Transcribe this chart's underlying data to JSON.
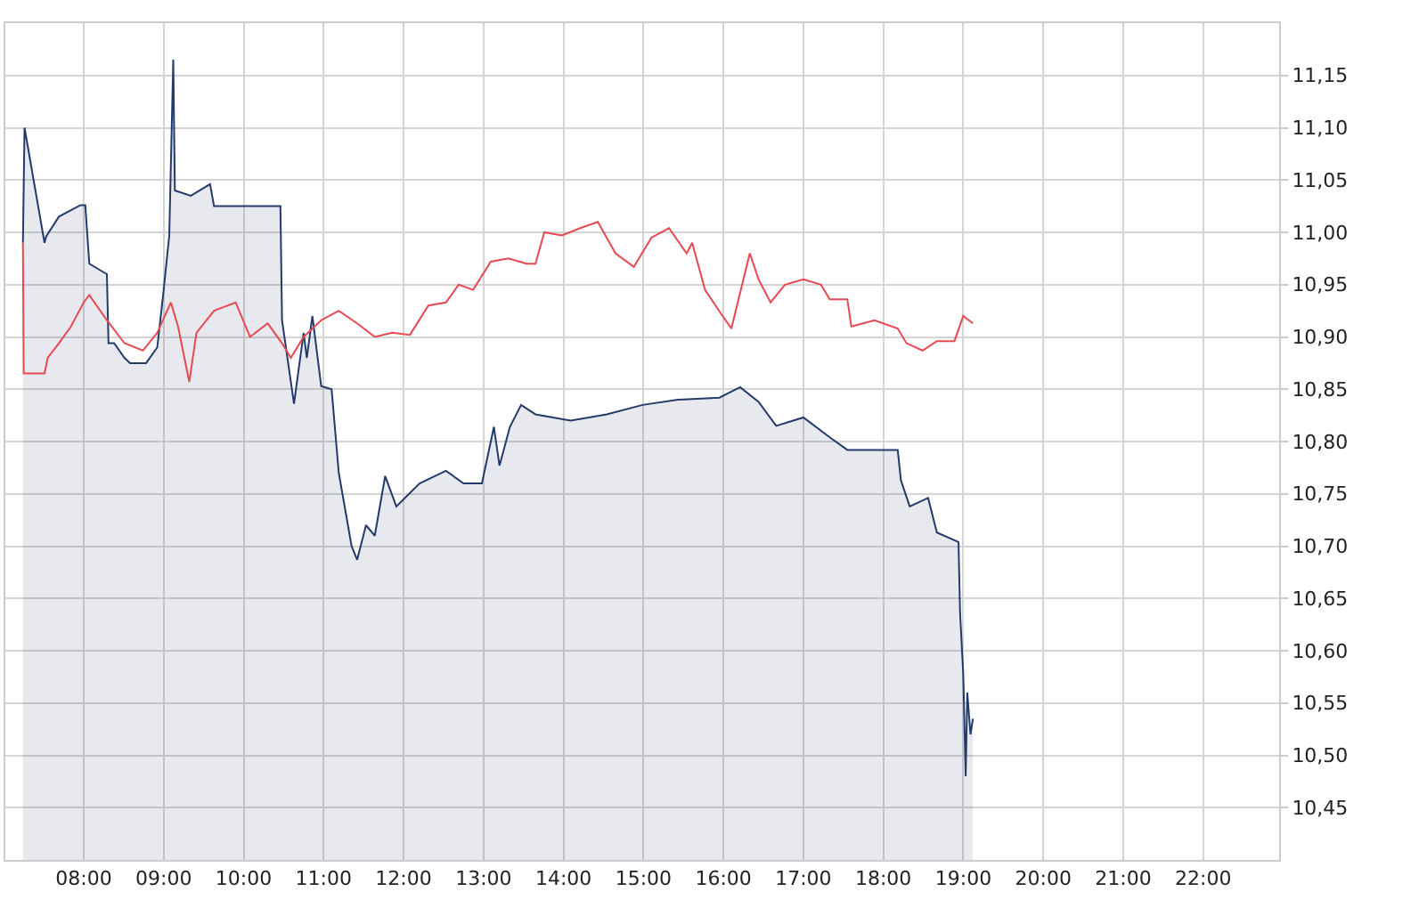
{
  "chart_data": {
    "type": "line",
    "grid": true,
    "xlim": [
      7.02,
      22.95
    ],
    "xticks": [
      {
        "value": 8,
        "label": "08:00"
      },
      {
        "value": 9,
        "label": "09:00"
      },
      {
        "value": 10,
        "label": "10:00"
      },
      {
        "value": 11,
        "label": "11:00"
      },
      {
        "value": 12,
        "label": "12:00"
      },
      {
        "value": 13,
        "label": "13:00"
      },
      {
        "value": 14,
        "label": "14:00"
      },
      {
        "value": 15,
        "label": "15:00"
      },
      {
        "value": 16,
        "label": "16:00"
      },
      {
        "value": 17,
        "label": "17:00"
      },
      {
        "value": 18,
        "label": "18:00"
      },
      {
        "value": 19,
        "label": "19:00"
      },
      {
        "value": 20,
        "label": "20:00"
      },
      {
        "value": 21,
        "label": "21:00"
      },
      {
        "value": 22,
        "label": "22:00"
      }
    ],
    "ylim": [
      10.4,
      11.2
    ],
    "yticks": [
      {
        "value": 10.45,
        "label": "10,45"
      },
      {
        "value": 10.5,
        "label": "10,50"
      },
      {
        "value": 10.55,
        "label": "10,55"
      },
      {
        "value": 10.6,
        "label": "10,60"
      },
      {
        "value": 10.65,
        "label": "10,65"
      },
      {
        "value": 10.7,
        "label": "10,70"
      },
      {
        "value": 10.75,
        "label": "10,75"
      },
      {
        "value": 10.8,
        "label": "10,80"
      },
      {
        "value": 10.85,
        "label": "10,85"
      },
      {
        "value": 10.9,
        "label": "10,90"
      },
      {
        "value": 10.95,
        "label": "10,95"
      },
      {
        "value": 11,
        "label": "11,00"
      },
      {
        "value": 11.05,
        "label": "11,05"
      },
      {
        "value": 11.1,
        "label": "11,10"
      },
      {
        "value": 11.15,
        "label": "11,15"
      }
    ],
    "series": [
      {
        "type": "area",
        "color": "#233a6a",
        "x": [
          7.24,
          7.26,
          7.51,
          7.53,
          7.69,
          7.96,
          8.02,
          8.07,
          8.29,
          8.31,
          8.38,
          8.51,
          8.58,
          8.78,
          8.92,
          9.0,
          9.07,
          9.12,
          9.14,
          9.34,
          9.58,
          9.63,
          10.46,
          10.48,
          10.63,
          10.75,
          10.79,
          10.86,
          10.97,
          11.1,
          11.19,
          11.35,
          11.42,
          11.53,
          11.64,
          11.77,
          11.91,
          12.2,
          12.53,
          12.75,
          12.98,
          13.13,
          13.2,
          13.33,
          13.47,
          13.65,
          14.09,
          14.54,
          14.99,
          15.43,
          15.95,
          16.21,
          16.44,
          16.66,
          17.0,
          17.33,
          17.55,
          18.18,
          18.22,
          18.33,
          18.56,
          18.67,
          18.94,
          18.96,
          19.0,
          19.03,
          19.05,
          19.09,
          19.12
        ],
        "values": [
          10.99,
          11.1,
          10.99,
          10.996,
          11.015,
          11.026,
          11.026,
          10.97,
          10.96,
          10.894,
          10.894,
          10.88,
          10.875,
          10.875,
          10.89,
          10.945,
          10.997,
          11.165,
          11.04,
          11.035,
          11.046,
          11.025,
          11.025,
          10.916,
          10.836,
          10.904,
          10.88,
          10.92,
          10.853,
          10.85,
          10.77,
          10.7,
          10.687,
          10.72,
          10.71,
          10.767,
          10.738,
          10.76,
          10.772,
          10.76,
          10.76,
          10.814,
          10.777,
          10.814,
          10.835,
          10.826,
          10.82,
          10.826,
          10.835,
          10.84,
          10.842,
          10.852,
          10.838,
          10.815,
          10.823,
          10.804,
          10.792,
          10.792,
          10.763,
          10.738,
          10.746,
          10.713,
          10.704,
          10.636,
          10.577,
          10.48,
          10.56,
          10.52,
          10.535
        ]
      },
      {
        "color": "#e8484f",
        "x": [
          7.24,
          7.25,
          7.51,
          7.55,
          7.69,
          7.84,
          8.0,
          8.07,
          8.29,
          8.51,
          8.74,
          8.92,
          9.09,
          9.18,
          9.32,
          9.41,
          9.63,
          9.9,
          10.08,
          10.3,
          10.48,
          10.59,
          10.75,
          10.97,
          11.19,
          11.42,
          11.64,
          11.86,
          12.08,
          12.31,
          12.53,
          12.69,
          12.87,
          13.09,
          13.31,
          13.54,
          13.65,
          13.76,
          13.98,
          14.21,
          14.43,
          14.65,
          14.88,
          15.1,
          15.32,
          15.54,
          15.61,
          15.77,
          15.99,
          16.1,
          16.33,
          16.44,
          16.59,
          16.77,
          17.0,
          17.22,
          17.33,
          17.55,
          17.6,
          17.89,
          18.18,
          18.29,
          18.49,
          18.67,
          18.89,
          19.0,
          19.12
        ],
        "values": [
          10.99,
          10.865,
          10.865,
          10.88,
          10.894,
          10.91,
          10.933,
          10.94,
          10.916,
          10.894,
          10.887,
          10.904,
          10.933,
          10.91,
          10.857,
          10.904,
          10.925,
          10.933,
          10.9,
          10.913,
          10.894,
          10.88,
          10.9,
          10.916,
          10.925,
          10.913,
          10.9,
          10.904,
          10.902,
          10.93,
          10.933,
          10.95,
          10.945,
          10.972,
          10.975,
          10.97,
          10.97,
          11.0,
          10.997,
          11.004,
          11.01,
          10.98,
          10.967,
          10.995,
          11.004,
          10.98,
          10.99,
          10.945,
          10.92,
          10.908,
          10.98,
          10.955,
          10.933,
          10.95,
          10.955,
          10.95,
          10.936,
          10.936,
          10.91,
          10.916,
          10.908,
          10.894,
          10.887,
          10.896,
          10.896,
          10.92,
          10.913
        ]
      }
    ]
  }
}
